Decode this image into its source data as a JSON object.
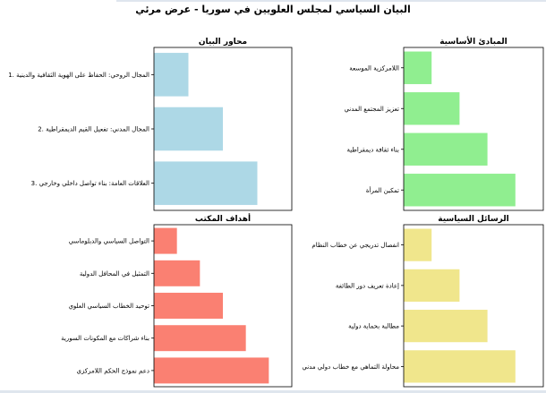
{
  "figure": {
    "title": "البيان السياسي لمجلس العلويين في سوريا - عرض مرئي"
  },
  "chart_data": [
    {
      "type": "bar",
      "orientation": "horizontal",
      "title": "محاور البيان",
      "color": "#add8e6",
      "categories": [
        "3. العلاقات العامة: بناء تواصل داخلي وخارجي",
        "2. المجال المدني: تفعيل القيم الديمقراطية",
        "1. المجال الروحي: الحفاظ على الهوية الثقافية والدينية"
      ],
      "values": [
        3,
        2,
        1
      ],
      "xlim": [
        0,
        4
      ],
      "grid": false,
      "axis_ticks_visible": false
    },
    {
      "type": "bar",
      "orientation": "horizontal",
      "title": "المبادئ الأساسية",
      "color": "#90ee90",
      "categories": [
        "تمكين المرأة",
        "بناء ثقافة ديمقراطية",
        "تعزيز المجتمع المدني",
        "اللامركزية الموسعة"
      ],
      "values": [
        4,
        3,
        2,
        1
      ],
      "xlim": [
        0,
        5
      ],
      "grid": false,
      "axis_ticks_visible": false
    },
    {
      "type": "bar",
      "orientation": "horizontal",
      "title": "أهداف المكتب",
      "color": "#fa8072",
      "categories": [
        "دعم نموذج الحكم اللامركزي",
        "بناء شراكات مع المكونات السورية",
        "توحيد الخطاب السياسي العلوي",
        "التمثيل في المحافل الدولية",
        "التواصل السياسي والدبلوماسي"
      ],
      "values": [
        5,
        4,
        3,
        2,
        1
      ],
      "xlim": [
        0,
        6
      ],
      "grid": false,
      "axis_ticks_visible": false
    },
    {
      "type": "bar",
      "orientation": "horizontal",
      "title": "الرسائل السياسية",
      "color": "#f0e68c",
      "categories": [
        "محاولة التماهي مع خطاب دولي مدني",
        "مطالبة بحماية دولية",
        "إعادة تعريف دور الطائفة",
        "انفصال تدريجي عن خطاب النظام"
      ],
      "values": [
        4,
        3,
        2,
        1
      ],
      "xlim": [
        0,
        5
      ],
      "grid": false,
      "axis_ticks_visible": false
    }
  ]
}
